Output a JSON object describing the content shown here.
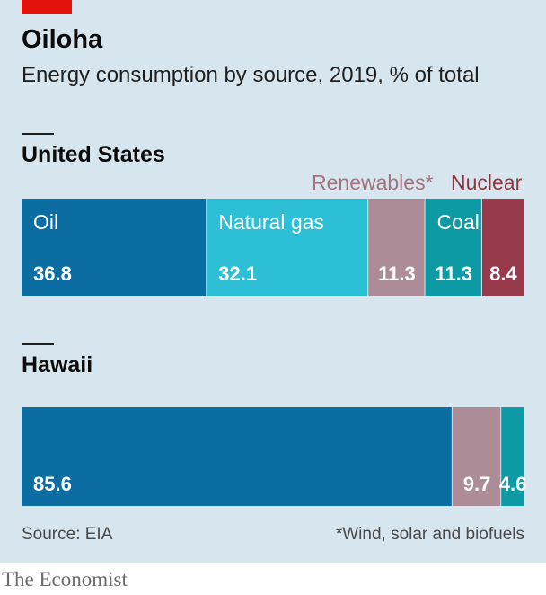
{
  "title": "Oiloha",
  "subtitle": "Energy consumption by source, 2019, % of total",
  "source": "Source: EIA",
  "footnote": "*Wind, solar and biofuels",
  "brand": "The Economist",
  "colors": {
    "Oil": "#0b6da2",
    "Natural gas": "#2cbfd6",
    "Renewables": "#ac8d97",
    "Coal": "#0d9aa4",
    "Nuclear": "#973b4c",
    "callout_renewables": "#a3737d",
    "callout_nuclear": "#93353f"
  },
  "callouts": {
    "renewables": "Renewables*",
    "nuclear": "Nuclear"
  },
  "chart_data": [
    {
      "type": "bar",
      "orientation": "horizontal-stacked",
      "title": "United States",
      "series": [
        {
          "name": "Oil",
          "value": 36.8,
          "label": "36.8",
          "inline_name": "Oil"
        },
        {
          "name": "Natural gas",
          "value": 32.1,
          "label": "32.1",
          "inline_name": "Natural gas"
        },
        {
          "name": "Renewables",
          "value": 11.3,
          "label": "11.3",
          "inline_name": ""
        },
        {
          "name": "Coal",
          "value": 11.3,
          "label": "11.3",
          "inline_name": "Coal"
        },
        {
          "name": "Nuclear",
          "value": 8.4,
          "label": "8.4",
          "inline_name": ""
        }
      ]
    },
    {
      "type": "bar",
      "orientation": "horizontal-stacked",
      "title": "Hawaii",
      "series": [
        {
          "name": "Oil",
          "value": 85.6,
          "label": "85.6",
          "inline_name": ""
        },
        {
          "name": "Renewables",
          "value": 9.7,
          "label": "9.7",
          "inline_name": ""
        },
        {
          "name": "Coal",
          "value": 4.6,
          "label": "4.6",
          "inline_name": ""
        }
      ]
    }
  ]
}
